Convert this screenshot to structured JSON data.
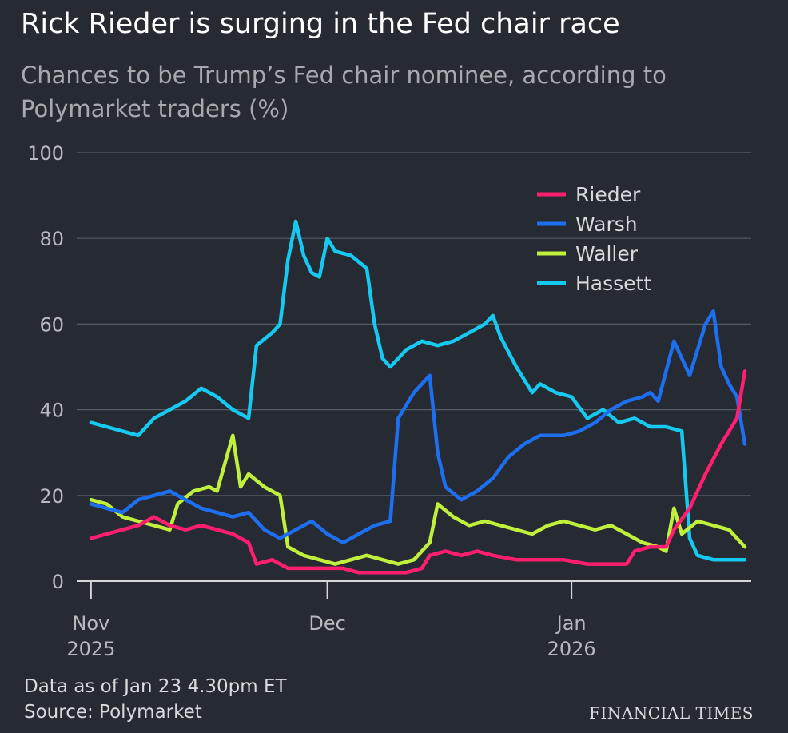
{
  "header": {
    "title": "Rick Rieder is surging in the Fed chair race",
    "subtitle": "Chances to be Trump’s Fed chair nominee, according to Polymarket traders (%)"
  },
  "footer": {
    "data_note": "Data as of Jan 23 4.30pm ET",
    "source": "Source: Polymarket",
    "publisher": "FINANCIAL TIMES"
  },
  "colors": {
    "background": "#262a33",
    "grid": "#575b63",
    "axis_text": "#b7b9bd"
  },
  "chart_data": {
    "type": "line",
    "title": "Rick Rieder is surging in the Fed chair race",
    "ylabel": "Chances to be Trump’s Fed chair nominee, according to Polymarket traders (%)",
    "ylim": [
      0,
      100
    ],
    "yticks": [
      0,
      20,
      40,
      60,
      80,
      100
    ],
    "xlim": [
      "2025-10-31",
      "2026-01-23"
    ],
    "xticks": [
      {
        "date": "2025-11-01",
        "label": "Nov",
        "sublabel": "2025"
      },
      {
        "date": "2025-12-01",
        "label": "Dec",
        "sublabel": ""
      },
      {
        "date": "2026-01-01",
        "label": "Jan",
        "sublabel": "2026"
      }
    ],
    "grid": true,
    "legend_position": "top-right",
    "series": [
      {
        "name": "Rieder",
        "color": "#ff1f6e",
        "points": [
          [
            "2025-11-01",
            10
          ],
          [
            "2025-11-03",
            11
          ],
          [
            "2025-11-05",
            12
          ],
          [
            "2025-11-07",
            13
          ],
          [
            "2025-11-09",
            15
          ],
          [
            "2025-11-11",
            13
          ],
          [
            "2025-11-13",
            12
          ],
          [
            "2025-11-15",
            13
          ],
          [
            "2025-11-17",
            12
          ],
          [
            "2025-11-19",
            11
          ],
          [
            "2025-11-21",
            9
          ],
          [
            "2025-11-22",
            4
          ],
          [
            "2025-11-24",
            5
          ],
          [
            "2025-11-26",
            3
          ],
          [
            "2025-11-28",
            3
          ],
          [
            "2025-12-01",
            3
          ],
          [
            "2025-12-03",
            3
          ],
          [
            "2025-12-05",
            2
          ],
          [
            "2025-12-07",
            2
          ],
          [
            "2025-12-09",
            2
          ],
          [
            "2025-12-11",
            2
          ],
          [
            "2025-12-13",
            3
          ],
          [
            "2025-12-14",
            6
          ],
          [
            "2025-12-16",
            7
          ],
          [
            "2025-12-18",
            6
          ],
          [
            "2025-12-20",
            7
          ],
          [
            "2025-12-22",
            6
          ],
          [
            "2025-12-25",
            5
          ],
          [
            "2025-12-28",
            5
          ],
          [
            "2025-12-31",
            5
          ],
          [
            "2026-01-03",
            4
          ],
          [
            "2026-01-06",
            4
          ],
          [
            "2026-01-08",
            4
          ],
          [
            "2026-01-09",
            7
          ],
          [
            "2026-01-11",
            8
          ],
          [
            "2026-01-13",
            8
          ],
          [
            "2026-01-14",
            12
          ],
          [
            "2026-01-16",
            17
          ],
          [
            "2026-01-18",
            25
          ],
          [
            "2026-01-20",
            32
          ],
          [
            "2026-01-22",
            38
          ],
          [
            "2026-01-23",
            49
          ]
        ]
      },
      {
        "name": "Warsh",
        "color": "#1e6ff0",
        "points": [
          [
            "2025-11-01",
            18
          ],
          [
            "2025-11-03",
            17
          ],
          [
            "2025-11-05",
            16
          ],
          [
            "2025-11-07",
            19
          ],
          [
            "2025-11-09",
            20
          ],
          [
            "2025-11-11",
            21
          ],
          [
            "2025-11-13",
            19
          ],
          [
            "2025-11-15",
            17
          ],
          [
            "2025-11-17",
            16
          ],
          [
            "2025-11-19",
            15
          ],
          [
            "2025-11-21",
            16
          ],
          [
            "2025-11-23",
            12
          ],
          [
            "2025-11-25",
            10
          ],
          [
            "2025-11-27",
            12
          ],
          [
            "2025-11-29",
            14
          ],
          [
            "2025-12-01",
            11
          ],
          [
            "2025-12-03",
            9
          ],
          [
            "2025-12-05",
            11
          ],
          [
            "2025-12-07",
            13
          ],
          [
            "2025-12-09",
            14
          ],
          [
            "2025-12-10",
            38
          ],
          [
            "2025-12-12",
            44
          ],
          [
            "2025-12-14",
            48
          ],
          [
            "2025-12-15",
            30
          ],
          [
            "2025-12-16",
            22
          ],
          [
            "2025-12-18",
            19
          ],
          [
            "2025-12-20",
            21
          ],
          [
            "2025-12-22",
            24
          ],
          [
            "2025-12-24",
            29
          ],
          [
            "2025-12-26",
            32
          ],
          [
            "2025-12-28",
            34
          ],
          [
            "2025-12-31",
            34
          ],
          [
            "2026-01-02",
            35
          ],
          [
            "2026-01-04",
            37
          ],
          [
            "2026-01-06",
            40
          ],
          [
            "2026-01-08",
            42
          ],
          [
            "2026-01-10",
            43
          ],
          [
            "2026-01-11",
            44
          ],
          [
            "2026-01-12",
            42
          ],
          [
            "2026-01-14",
            56
          ],
          [
            "2026-01-16",
            48
          ],
          [
            "2026-01-18",
            60
          ],
          [
            "2026-01-19",
            63
          ],
          [
            "2026-01-20",
            50
          ],
          [
            "2026-01-21",
            46
          ],
          [
            "2026-01-22",
            43
          ],
          [
            "2026-01-23",
            32
          ]
        ]
      },
      {
        "name": "Waller",
        "color": "#c0f03c",
        "points": [
          [
            "2025-11-01",
            19
          ],
          [
            "2025-11-03",
            18
          ],
          [
            "2025-11-05",
            15
          ],
          [
            "2025-11-07",
            14
          ],
          [
            "2025-11-09",
            13
          ],
          [
            "2025-11-11",
            12
          ],
          [
            "2025-11-12",
            18
          ],
          [
            "2025-11-14",
            21
          ],
          [
            "2025-11-16",
            22
          ],
          [
            "2025-11-17",
            21
          ],
          [
            "2025-11-19",
            34
          ],
          [
            "2025-11-20",
            22
          ],
          [
            "2025-11-21",
            25
          ],
          [
            "2025-11-23",
            22
          ],
          [
            "2025-11-25",
            20
          ],
          [
            "2025-11-26",
            8
          ],
          [
            "2025-11-28",
            6
          ],
          [
            "2025-11-30",
            5
          ],
          [
            "2025-12-02",
            4
          ],
          [
            "2025-12-04",
            5
          ],
          [
            "2025-12-06",
            6
          ],
          [
            "2025-12-08",
            5
          ],
          [
            "2025-12-10",
            4
          ],
          [
            "2025-12-12",
            5
          ],
          [
            "2025-12-14",
            9
          ],
          [
            "2025-12-15",
            18
          ],
          [
            "2025-12-17",
            15
          ],
          [
            "2025-12-19",
            13
          ],
          [
            "2025-12-21",
            14
          ],
          [
            "2025-12-23",
            13
          ],
          [
            "2025-12-25",
            12
          ],
          [
            "2025-12-27",
            11
          ],
          [
            "2025-12-29",
            13
          ],
          [
            "2025-12-31",
            14
          ],
          [
            "2026-01-02",
            13
          ],
          [
            "2026-01-04",
            12
          ],
          [
            "2026-01-06",
            13
          ],
          [
            "2026-01-08",
            11
          ],
          [
            "2026-01-10",
            9
          ],
          [
            "2026-01-12",
            8
          ],
          [
            "2026-01-13",
            7
          ],
          [
            "2026-01-14",
            17
          ],
          [
            "2026-01-15",
            11
          ],
          [
            "2026-01-17",
            14
          ],
          [
            "2026-01-19",
            13
          ],
          [
            "2026-01-21",
            12
          ],
          [
            "2026-01-23",
            8
          ]
        ]
      },
      {
        "name": "Hassett",
        "color": "#16c9f0",
        "points": [
          [
            "2025-11-01",
            37
          ],
          [
            "2025-11-03",
            36
          ],
          [
            "2025-11-05",
            35
          ],
          [
            "2025-11-07",
            34
          ],
          [
            "2025-11-09",
            38
          ],
          [
            "2025-11-11",
            40
          ],
          [
            "2025-11-13",
            42
          ],
          [
            "2025-11-15",
            45
          ],
          [
            "2025-11-17",
            43
          ],
          [
            "2025-11-19",
            40
          ],
          [
            "2025-11-21",
            38
          ],
          [
            "2025-11-22",
            55
          ],
          [
            "2025-11-24",
            58
          ],
          [
            "2025-11-25",
            60
          ],
          [
            "2025-11-26",
            75
          ],
          [
            "2025-11-27",
            84
          ],
          [
            "2025-11-28",
            76
          ],
          [
            "2025-11-29",
            72
          ],
          [
            "2025-11-30",
            71
          ],
          [
            "2025-12-01",
            80
          ],
          [
            "2025-12-02",
            77
          ],
          [
            "2025-12-04",
            76
          ],
          [
            "2025-12-06",
            73
          ],
          [
            "2025-12-07",
            60
          ],
          [
            "2025-12-08",
            52
          ],
          [
            "2025-12-09",
            50
          ],
          [
            "2025-12-11",
            54
          ],
          [
            "2025-12-13",
            56
          ],
          [
            "2025-12-15",
            55
          ],
          [
            "2025-12-17",
            56
          ],
          [
            "2025-12-19",
            58
          ],
          [
            "2025-12-21",
            60
          ],
          [
            "2025-12-22",
            62
          ],
          [
            "2025-12-23",
            57
          ],
          [
            "2025-12-25",
            50
          ],
          [
            "2025-12-27",
            44
          ],
          [
            "2025-12-28",
            46
          ],
          [
            "2025-12-30",
            44
          ],
          [
            "2026-01-01",
            43
          ],
          [
            "2026-01-03",
            38
          ],
          [
            "2026-01-05",
            40
          ],
          [
            "2026-01-07",
            37
          ],
          [
            "2026-01-09",
            38
          ],
          [
            "2026-01-11",
            36
          ],
          [
            "2026-01-13",
            36
          ],
          [
            "2026-01-15",
            35
          ],
          [
            "2026-01-16",
            10
          ],
          [
            "2026-01-17",
            6
          ],
          [
            "2026-01-19",
            5
          ],
          [
            "2026-01-21",
            5
          ],
          [
            "2026-01-23",
            5
          ]
        ]
      }
    ]
  }
}
